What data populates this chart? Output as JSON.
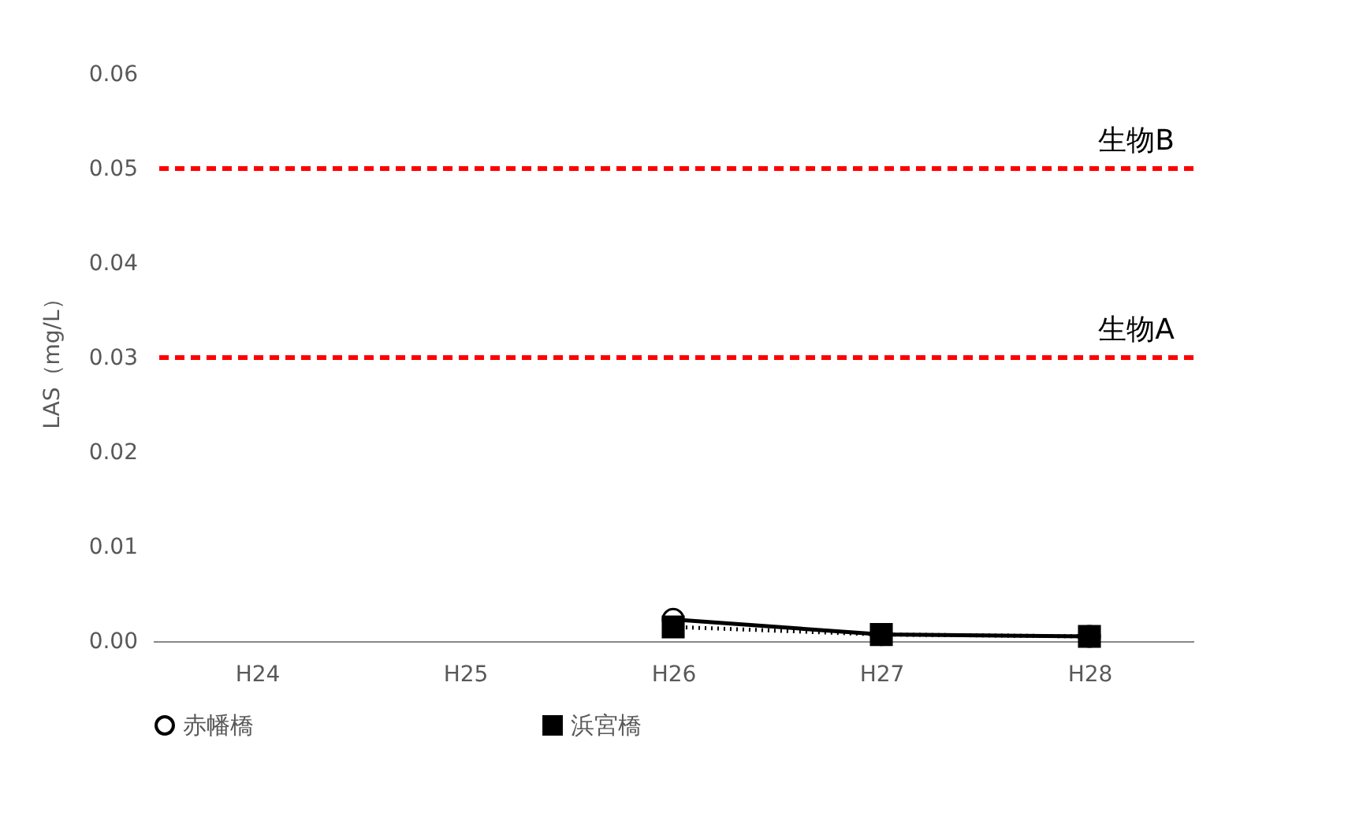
{
  "chart_data": {
    "type": "line",
    "ylabel": "LAS（mg/L）",
    "categories": [
      "H24",
      "H25",
      "H26",
      "H27",
      "H28"
    ],
    "series": [
      {
        "name": "赤幡橋",
        "color": "#000000",
        "marker": "circle",
        "line_style": "solid",
        "values": [
          null,
          null,
          0.0023,
          0.0007,
          0.0005
        ]
      },
      {
        "name": "浜宮橋",
        "color": "#000000",
        "marker": "square",
        "line_style": "dotted",
        "values": [
          null,
          null,
          0.0015,
          0.0007,
          0.0005
        ]
      }
    ],
    "ylim": [
      0,
      0.06
    ],
    "yticks": [
      {
        "value": 0,
        "label": "0.00"
      },
      {
        "value": 0.01,
        "label": "0.01"
      },
      {
        "value": 0.02,
        "label": "0.02"
      },
      {
        "value": 0.03,
        "label": "0.03"
      },
      {
        "value": 0.04,
        "label": "0.04"
      },
      {
        "value": 0.05,
        "label": "0.05"
      },
      {
        "value": 0.06,
        "label": "0.06"
      }
    ],
    "grid": false,
    "legend": "bottom",
    "ref_lines": [
      {
        "axis": "y",
        "value": 0.05,
        "label": "生物B",
        "color": "#ff0000",
        "line_style": "dashed"
      },
      {
        "axis": "y",
        "value": 0.03,
        "label": "生物A",
        "color": "#ff0000",
        "line_style": "dashed"
      }
    ]
  }
}
